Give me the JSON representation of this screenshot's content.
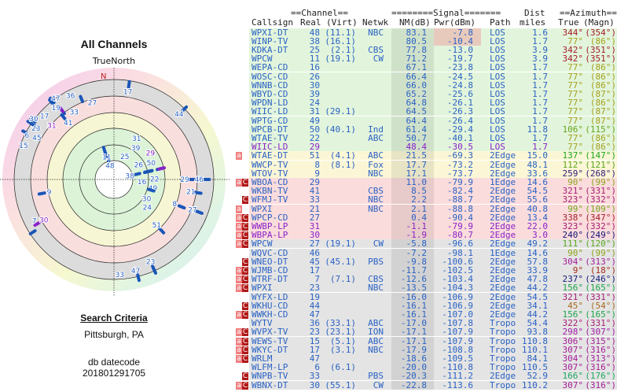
{
  "left_panel": {
    "title": "All Channels",
    "north_label": "TrueNorth",
    "n_marker": "N",
    "search_criteria_label": "Search Criteria",
    "location": "Pittsburgh, PA",
    "db_datecode_label": "db datecode",
    "db_datecode": "201801291705"
  },
  "table": {
    "group_headers": {
      "channel": "==Channel==",
      "signal": "========Signal=======",
      "dist": "Dist",
      "azimuth": "==Azimuth=="
    },
    "columns": {
      "callsign": "Callsign",
      "real": "Real",
      "virt": "(Virt)",
      "netwk": "Netwk",
      "nm": "NM(dB)",
      "pwr": "Pwr(dBm)",
      "path": "Path",
      "dist": "miles",
      "true": "True",
      "magn": "(Magn)"
    },
    "colors": {
      "los": "#e2f5dc",
      "edge": "#fbf7d6",
      "weak": "#fbdcdc",
      "gray": "#e4e4e4",
      "callsign": "#2a62c4",
      "purple": "#8a22c8",
      "badge_a": "#f08080",
      "badge_c": "#b01818"
    },
    "rows": [
      {
        "badges": "",
        "callsign": "WPXI-DT",
        "real": "48",
        "virt": "(11.1)",
        "netwk": "NBC",
        "nm": "83.1",
        "pwr": "-7.8",
        "path": "LOS",
        "dist": "1.6",
        "true": "344°",
        "magn": "(354°)",
        "band": "los",
        "pwr_hi": true
      },
      {
        "badges": "",
        "callsign": "WINP-TV",
        "real": "38",
        "virt": "(16.1)",
        "netwk": "",
        "nm": "80.5",
        "pwr": "-10.4",
        "path": "LOS",
        "dist": "1.7",
        "true": "77°",
        "magn": "(86°)",
        "band": "los",
        "pwr_hi": true
      },
      {
        "badges": "",
        "callsign": "KDKA-DT",
        "real": "25",
        "virt": "(2.1)",
        "netwk": "CBS",
        "nm": "77.8",
        "pwr": "-13.0",
        "path": "LOS",
        "dist": "3.9",
        "true": "342°",
        "magn": "(351°)",
        "band": "los"
      },
      {
        "badges": "",
        "callsign": "WPCW",
        "real": "11",
        "virt": "(19.1)",
        "netwk": "CW",
        "nm": "71.2",
        "pwr": "-19.7",
        "path": "LOS",
        "dist": "3.9",
        "true": "342°",
        "magn": "(351°)",
        "band": "los"
      },
      {
        "badges": "",
        "callsign": "WEPA-CD",
        "real": "16",
        "virt": "",
        "netwk": "",
        "nm": "67.1",
        "pwr": "-23.8",
        "path": "LOS",
        "dist": "1.7",
        "true": "77°",
        "magn": "(86°)",
        "band": "los"
      },
      {
        "badges": "",
        "callsign": "WOSC-CD",
        "real": "26",
        "virt": "",
        "netwk": "",
        "nm": "66.4",
        "pwr": "-24.5",
        "path": "LOS",
        "dist": "1.7",
        "true": "77°",
        "magn": "(86°)",
        "band": "los"
      },
      {
        "badges": "",
        "callsign": "WNNB-CD",
        "real": "30",
        "virt": "",
        "netwk": "",
        "nm": "66.0",
        "pwr": "-24.8",
        "path": "LOS",
        "dist": "1.7",
        "true": "77°",
        "magn": "(86°)",
        "band": "los"
      },
      {
        "badges": "",
        "callsign": "WBYD-CD",
        "real": "39",
        "virt": "",
        "netwk": "",
        "nm": "65.2",
        "pwr": "-25.6",
        "path": "LOS",
        "dist": "1.7",
        "true": "77°",
        "magn": "(87°)",
        "band": "los"
      },
      {
        "badges": "",
        "callsign": "WPDN-LD",
        "real": "24",
        "virt": "",
        "netwk": "",
        "nm": "64.8",
        "pwr": "-26.1",
        "path": "LOS",
        "dist": "1.7",
        "true": "77°",
        "magn": "(86°)",
        "band": "los"
      },
      {
        "badges": "",
        "callsign": "WIIC-LD",
        "real": "31",
        "virt": "(29.1)",
        "netwk": "",
        "nm": "64.5",
        "pwr": "-26.3",
        "path": "LOS",
        "dist": "1.7",
        "true": "77°",
        "magn": "(87°)",
        "band": "los"
      },
      {
        "badges": "",
        "callsign": "WPTG-CD",
        "real": "49",
        "virt": "",
        "netwk": "",
        "nm": "64.4",
        "pwr": "-26.4",
        "path": "LOS",
        "dist": "1.7",
        "true": "77°",
        "magn": "(87°)",
        "band": "los"
      },
      {
        "badges": "",
        "callsign": "WPCB-DT",
        "real": "50",
        "virt": "(40.1)",
        "netwk": "Ind",
        "nm": "61.4",
        "pwr": "-29.4",
        "path": "LOS",
        "dist": "11.8",
        "true": "106°",
        "magn": "(115°)",
        "band": "los"
      },
      {
        "badges": "",
        "callsign": "WTAE-TV",
        "real": "22",
        "virt": "",
        "netwk": "ABC",
        "nm": "50.7",
        "pwr": "-40.1",
        "path": "LOS",
        "dist": "1.7",
        "true": "77°",
        "magn": "(86°)",
        "band": "los"
      },
      {
        "badges": "",
        "callsign": "WIIC-LD",
        "real": "29",
        "virt": "",
        "netwk": "",
        "nm": "48.4",
        "pwr": "-30.5",
        "path": "LOS",
        "dist": "1.7",
        "true": "77°",
        "magn": "(86°)",
        "band": "los",
        "purple": true
      },
      {
        "badges": "a",
        "callsign": "WTAE-DT",
        "real": "51",
        "virt": "(4.1)",
        "netwk": "ABC",
        "nm": "21.5",
        "pwr": "-69.3",
        "path": "2Edge",
        "dist": "15.0",
        "true": "137°",
        "magn": "(147°)",
        "band": "edge"
      },
      {
        "badges": "",
        "callsign": "WWCP-TV",
        "real": "8",
        "virt": "(8.1)",
        "netwk": "Fox",
        "nm": "17.7",
        "pwr": "-73.2",
        "path": "2Edge",
        "dist": "48.1",
        "true": "112°",
        "magn": "(121°)",
        "band": "edge"
      },
      {
        "badges": "",
        "callsign": "WTOV-TV",
        "real": "9",
        "virt": "",
        "netwk": "NBC",
        "nm": "17.1",
        "pwr": "-73.7",
        "path": "2Edge",
        "dist": "33.6",
        "true": "259°",
        "magn": "(268°)",
        "band": "edge"
      },
      {
        "badges": "aC",
        "callsign": "WBOA-CD",
        "real": "29",
        "virt": "",
        "netwk": "",
        "nm": "11.0",
        "pwr": "-79.9",
        "path": "1Edge",
        "dist": "14.6",
        "true": "90°",
        "magn": "(99°)",
        "band": "weak"
      },
      {
        "badges": "",
        "callsign": "WKBN-TV",
        "real": "41",
        "virt": "",
        "netwk": "CBS",
        "nm": "8.5",
        "pwr": "-82.4",
        "path": "2Edge",
        "dist": "54.5",
        "true": "321°",
        "magn": "(331°)",
        "band": "weak"
      },
      {
        "badges": "C",
        "callsign": "WFMJ-TV",
        "real": "33",
        "virt": "",
        "netwk": "NBC",
        "nm": "2.2",
        "pwr": "-88.7",
        "path": "2Edge",
        "dist": "55.6",
        "true": "323°",
        "magn": "(332°)",
        "band": "weak"
      },
      {
        "badges": "a",
        "callsign": "WPXI",
        "real": "21",
        "virt": "",
        "netwk": "NBC",
        "nm": "2.1",
        "pwr": "-88.8",
        "path": "2Edge",
        "dist": "40.8",
        "true": "99°",
        "magn": "(109°)",
        "band": "weak"
      },
      {
        "badges": "aC",
        "callsign": "WPCP-CD",
        "real": "27",
        "virt": "",
        "netwk": "",
        "nm": "0.4",
        "pwr": "-90.4",
        "path": "2Edge",
        "dist": "13.4",
        "true": "338°",
        "magn": "(347°)",
        "band": "weak"
      },
      {
        "badges": "aC",
        "callsign": "WWBP-LP",
        "real": "31",
        "virt": "",
        "netwk": "",
        "nm": "-1.1",
        "pwr": "-79.9",
        "path": "2Edge",
        "dist": "22.0",
        "true": "323°",
        "magn": "(332°)",
        "band": "weak",
        "purple": true
      },
      {
        "badges": "aC",
        "callsign": "WBPA-LP",
        "real": "30",
        "virt": "",
        "netwk": "",
        "nm": "-1.9",
        "pwr": "-80.7",
        "path": "2Edge",
        "dist": "3.0",
        "true": "240°",
        "magn": "(249°)",
        "band": "weak",
        "purple": true
      },
      {
        "badges": "aC",
        "callsign": "WPCW",
        "real": "27",
        "virt": "(19.1)",
        "netwk": "CW",
        "nm": "-5.8",
        "pwr": "-96.6",
        "path": "2Edge",
        "dist": "49.2",
        "true": "111°",
        "magn": "(120°)",
        "band": "gray"
      },
      {
        "badges": "",
        "callsign": "WQVC-CD",
        "real": "46",
        "virt": "",
        "netwk": "",
        "nm": "-7.2",
        "pwr": "-98.1",
        "path": "1Edge",
        "dist": "14.6",
        "true": "90°",
        "magn": "(99°)",
        "band": "gray"
      },
      {
        "badges": "C",
        "callsign": "WNEO-DT",
        "real": "45",
        "virt": "(45.1)",
        "netwk": "PBS",
        "nm": "-9.8",
        "pwr": "-100.6",
        "path": "2Edge",
        "dist": "57.8",
        "true": "304°",
        "magn": "(313°)",
        "band": "gray"
      },
      {
        "badges": "aC",
        "callsign": "WJMB-CD",
        "real": "17",
        "virt": "",
        "netwk": "",
        "nm": "-11.7",
        "pwr": "-102.5",
        "path": "2Edge",
        "dist": "33.9",
        "true": "9°",
        "magn": "(18°)",
        "band": "gray"
      },
      {
        "badges": "aC",
        "callsign": "WTRF-DT",
        "real": "7",
        "virt": "(7.1)",
        "netwk": "CBS",
        "nm": "-12.6",
        "pwr": "-103.4",
        "path": "2Edge",
        "dist": "47.8",
        "true": "237°",
        "magn": "(246°)",
        "band": "gray"
      },
      {
        "badges": "aC",
        "callsign": "WPXI",
        "real": "23",
        "virt": "",
        "netwk": "NBC",
        "nm": "-13.5",
        "pwr": "-104.3",
        "path": "2Edge",
        "dist": "44.2",
        "true": "156°",
        "magn": "(165°)",
        "band": "gray"
      },
      {
        "badges": "",
        "callsign": "WYFX-LD",
        "real": "19",
        "virt": "",
        "netwk": "",
        "nm": "-16.0",
        "pwr": "-106.9",
        "path": "2Edge",
        "dist": "54.5",
        "true": "321°",
        "magn": "(331°)",
        "band": "gray"
      },
      {
        "badges": "C",
        "callsign": "WKHU-CD",
        "real": "44",
        "virt": "",
        "netwk": "",
        "nm": "-16.1",
        "pwr": "-106.9",
        "path": "2Edge",
        "dist": "34.1",
        "true": "45°",
        "magn": "(54°)",
        "band": "gray"
      },
      {
        "badges": "aC",
        "callsign": "WWKH-CD",
        "real": "47",
        "virt": "",
        "netwk": "",
        "nm": "-16.1",
        "pwr": "-107.0",
        "path": "2Edge",
        "dist": "44.2",
        "true": "156°",
        "magn": "(165°)",
        "band": "gray"
      },
      {
        "badges": "",
        "callsign": "WYTV",
        "real": "36",
        "virt": "(33.1)",
        "netwk": "ABC",
        "nm": "-17.0",
        "pwr": "-107.8",
        "path": "Tropo",
        "dist": "54.4",
        "true": "322°",
        "magn": "(331°)",
        "band": "gray"
      },
      {
        "badges": "aC",
        "callsign": "WVPX-TV",
        "real": "23",
        "virt": "(23.1)",
        "netwk": "ION",
        "nm": "-17.1",
        "pwr": "-107.9",
        "path": "Tropo",
        "dist": "93.8",
        "true": "298°",
        "magn": "(307°)",
        "band": "gray"
      },
      {
        "badges": "aC",
        "callsign": "WEWS-TV",
        "real": "15",
        "virt": "(5.1)",
        "netwk": "ABC",
        "nm": "-17.1",
        "pwr": "-107.9",
        "path": "Tropo",
        "dist": "110.8",
        "true": "306°",
        "magn": "(315°)",
        "band": "gray"
      },
      {
        "badges": "aC",
        "callsign": "WKYC-DT",
        "real": "17",
        "virt": "(3.1)",
        "netwk": "NBC",
        "nm": "-17.9",
        "pwr": "-108.8",
        "path": "Tropo",
        "dist": "110.1",
        "true": "307°",
        "magn": "(316°)",
        "band": "gray"
      },
      {
        "badges": "aC",
        "callsign": "WRLM",
        "real": "47",
        "virt": "",
        "netwk": "",
        "nm": "-18.6",
        "pwr": "-109.5",
        "path": "Tropo",
        "dist": "84.1",
        "true": "304°",
        "magn": "(313°)",
        "band": "gray"
      },
      {
        "badges": "",
        "callsign": "WLFM-LP",
        "real": "6",
        "virt": "(6.1)",
        "netwk": "",
        "nm": "-20.0",
        "pwr": "-110.8",
        "path": "Tropo",
        "dist": "110.5",
        "true": "307°",
        "magn": "(316°)",
        "band": "gray"
      },
      {
        "badges": "C",
        "callsign": "WNPB-TV",
        "real": "33",
        "virt": "",
        "netwk": "PBS",
        "nm": "-20.3",
        "pwr": "-111.2",
        "path": "2Edge",
        "dist": "52.9",
        "true": "166°",
        "magn": "(176°)",
        "band": "gray"
      },
      {
        "badges": "aC",
        "callsign": "WBNX-DT",
        "real": "30",
        "virt": "(55.1)",
        "netwk": "CW",
        "nm": "-22.8",
        "pwr": "-113.6",
        "path": "Tropo",
        "dist": "110.2",
        "true": "307°",
        "magn": "(316°)",
        "band": "gray"
      }
    ]
  }
}
